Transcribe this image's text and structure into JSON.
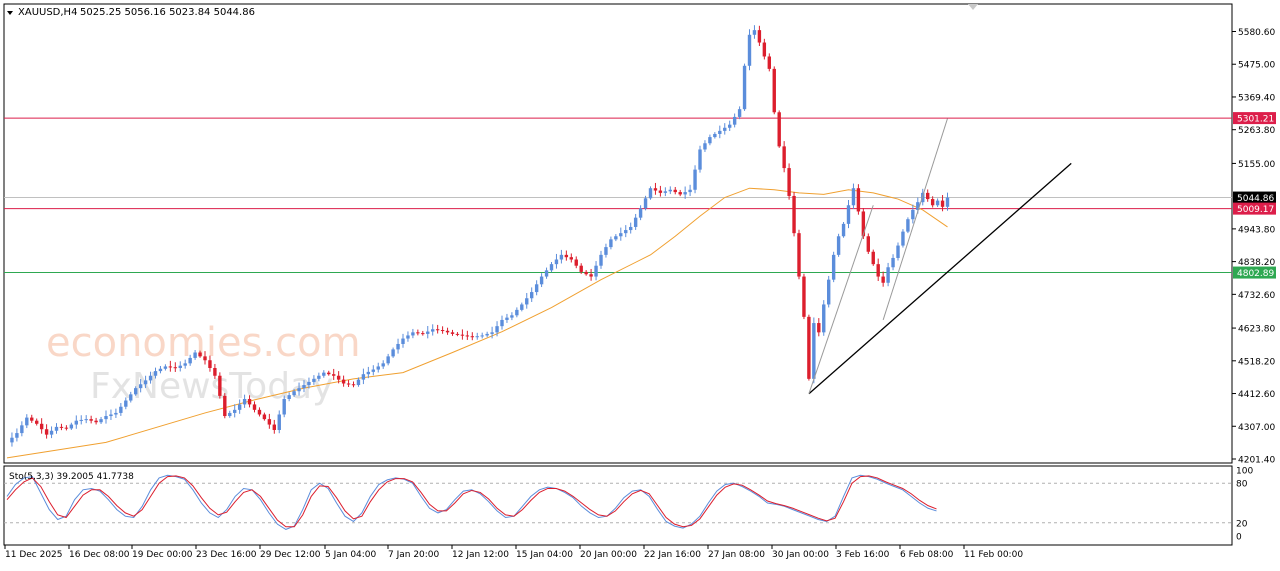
{
  "header": {
    "symbol": "XAUUSD,H4",
    "ohlc": "5025.25 5056.16 5023.84 5044.86"
  },
  "watermark": {
    "line1": "economies.com",
    "line2": "FxNewsToday"
  },
  "chart_data": [
    {
      "type": "candlestick",
      "title": "XAUUSD,H4",
      "ylim": [
        4180,
        5640
      ],
      "y_ticks": [
        "5580.60",
        "5475.00",
        "5369.40",
        "5263.80",
        "5155.00",
        "4943.80",
        "4838.20",
        "4732.60",
        "4623.80",
        "4518.20",
        "4412.60",
        "4307.00",
        "4201.40"
      ],
      "x_ticks": [
        "11 Dec 2025",
        "16 Dec 08:00",
        "19 Dec 00:00",
        "23 Dec 16:00",
        "29 Dec 12:00",
        "5 Jan 04:00",
        "7 Jan 20:00",
        "12 Jan 12:00",
        "15 Jan 04:00",
        "20 Jan 00:00",
        "22 Jan 16:00",
        "27 Jan 08:00",
        "30 Jan 00:00",
        "3 Feb 16:00",
        "6 Feb 08:00",
        "11 Feb 00:00"
      ],
      "ohlc": {
        "open": 5025.25,
        "high": 5056.16,
        "low": 5023.84,
        "close": 5044.86
      },
      "colors": {
        "up": "#5b8ddb",
        "down": "#dc1e2d",
        "moving_average": "#f0a030"
      },
      "price_path": [
        [
          0,
          4255
        ],
        [
          2,
          4285
        ],
        [
          4,
          4335
        ],
        [
          6,
          4315
        ],
        [
          8,
          4280
        ],
        [
          10,
          4305
        ],
        [
          12,
          4300
        ],
        [
          14,
          4325
        ],
        [
          16,
          4330
        ],
        [
          18,
          4320
        ],
        [
          20,
          4340
        ],
        [
          22,
          4350
        ],
        [
          24,
          4390
        ],
        [
          26,
          4430
        ],
        [
          28,
          4455
        ],
        [
          30,
          4485
        ],
        [
          32,
          4500
        ],
        [
          34,
          4495
        ],
        [
          36,
          4510
        ],
        [
          38,
          4545
        ],
        [
          40,
          4520
        ],
        [
          42,
          4470
        ],
        [
          44,
          4340
        ],
        [
          46,
          4360
        ],
        [
          48,
          4395
        ],
        [
          50,
          4360
        ],
        [
          52,
          4330
        ],
        [
          54,
          4295
        ],
        [
          56,
          4395
        ],
        [
          58,
          4420
        ],
        [
          60,
          4440
        ],
        [
          62,
          4460
        ],
        [
          64,
          4480
        ],
        [
          66,
          4470
        ],
        [
          68,
          4445
        ],
        [
          70,
          4440
        ],
        [
          72,
          4475
        ],
        [
          74,
          4490
        ],
        [
          76,
          4510
        ],
        [
          78,
          4555
        ],
        [
          80,
          4590
        ],
        [
          82,
          4610
        ],
        [
          84,
          4605
        ],
        [
          86,
          4620
        ],
        [
          88,
          4615
        ],
        [
          90,
          4605
        ],
        [
          92,
          4600
        ],
        [
          94,
          4595
        ],
        [
          96,
          4600
        ],
        [
          98,
          4610
        ],
        [
          100,
          4650
        ],
        [
          102,
          4665
        ],
        [
          104,
          4700
        ],
        [
          106,
          4740
        ],
        [
          108,
          4790
        ],
        [
          110,
          4830
        ],
        [
          112,
          4860
        ],
        [
          114,
          4845
        ],
        [
          116,
          4805
        ],
        [
          118,
          4790
        ],
        [
          120,
          4860
        ],
        [
          122,
          4910
        ],
        [
          124,
          4930
        ],
        [
          126,
          4950
        ],
        [
          128,
          5010
        ],
        [
          130,
          5075
        ],
        [
          132,
          5060
        ],
        [
          134,
          5070
        ],
        [
          136,
          5055
        ],
        [
          138,
          5070
        ],
        [
          140,
          5200
        ],
        [
          142,
          5240
        ],
        [
          144,
          5260
        ],
        [
          146,
          5280
        ],
        [
          148,
          5330
        ],
        [
          149,
          5470
        ],
        [
          150,
          5570
        ],
        [
          151,
          5585
        ],
        [
          152,
          5545
        ],
        [
          153,
          5500
        ],
        [
          154,
          5460
        ],
        [
          155,
          5320
        ],
        [
          156,
          5210
        ],
        [
          157,
          5140
        ],
        [
          158,
          5050
        ],
        [
          159,
          4930
        ],
        [
          160,
          4790
        ],
        [
          161,
          4660
        ],
        [
          162,
          4460
        ],
        [
          163,
          4640
        ],
        [
          164,
          4610
        ],
        [
          165,
          4700
        ],
        [
          166,
          4780
        ],
        [
          167,
          4860
        ],
        [
          168,
          4920
        ],
        [
          169,
          4960
        ],
        [
          170,
          5020
        ],
        [
          171,
          5075
        ],
        [
          172,
          5000
        ],
        [
          173,
          4920
        ],
        [
          174,
          4870
        ],
        [
          175,
          4830
        ],
        [
          176,
          4790
        ],
        [
          177,
          4770
        ],
        [
          178,
          4820
        ],
        [
          179,
          4850
        ],
        [
          180,
          4890
        ],
        [
          181,
          4935
        ],
        [
          182,
          4975
        ],
        [
          183,
          5005
        ],
        [
          184,
          5030
        ],
        [
          185,
          5060
        ],
        [
          186,
          5040
        ],
        [
          187,
          5020
        ],
        [
          188,
          5035
        ],
        [
          189,
          5015
        ],
        [
          190,
          5044.86
        ]
      ],
      "moving_average": {
        "name": "",
        "points": [
          [
            0,
            4205
          ],
          [
            20,
            4255
          ],
          [
            40,
            4350
          ],
          [
            50,
            4392
          ],
          [
            60,
            4430
          ],
          [
            70,
            4460
          ],
          [
            80,
            4480
          ],
          [
            90,
            4545
          ],
          [
            100,
            4612
          ],
          [
            110,
            4690
          ],
          [
            120,
            4780
          ],
          [
            130,
            4860
          ],
          [
            135,
            4920
          ],
          [
            140,
            4985
          ],
          [
            145,
            5045
          ],
          [
            150,
            5075
          ],
          [
            155,
            5070
          ],
          [
            160,
            5060
          ],
          [
            165,
            5055
          ],
          [
            170,
            5070
          ],
          [
            175,
            5060
          ],
          [
            180,
            5040
          ],
          [
            185,
            5005
          ],
          [
            190,
            4950
          ]
        ]
      },
      "horizontal_levels": [
        {
          "value": 5301.21,
          "label": "5301.21",
          "color": "#dc1e4a"
        },
        {
          "value": 5044.86,
          "label": "5044.86",
          "color": "#000000"
        },
        {
          "value": 5009.17,
          "label": "5009.17",
          "color": "#dc1e4a"
        },
        {
          "value": 4802.89,
          "label": "4802.89",
          "color": "#2ea851"
        }
      ],
      "trend_lines": [
        {
          "color": "#000000",
          "from": [
            162,
            4412
          ],
          "to": [
            215,
            5155
          ]
        },
        {
          "color": "#9a9a9a",
          "from": [
            162,
            4412
          ],
          "to": [
            175,
            5020
          ]
        },
        {
          "color": "#9a9a9a",
          "from": [
            177,
            4650
          ],
          "to": [
            190,
            5300
          ]
        }
      ]
    },
    {
      "type": "line",
      "title": "Sto(5,3,3) 39.2005 41.7738",
      "ylim": [
        0,
        100
      ],
      "y_ticks": [
        "100",
        "80",
        "20",
        "0"
      ],
      "levels": [
        80,
        20
      ],
      "main_value": 39.2005,
      "signal_value": 41.7738,
      "colors": {
        "main": "#5b8ddb",
        "signal": "#dc1e2d"
      },
      "series": [
        {
          "values": [
            60,
            78,
            88,
            90,
            65,
            40,
            25,
            30,
            55,
            70,
            72,
            68,
            55,
            40,
            30,
            28,
            45,
            70,
            88,
            92,
            90,
            86,
            70,
            50,
            35,
            28,
            40,
            60,
            72,
            70,
            55,
            35,
            18,
            10,
            15,
            40,
            70,
            80,
            72,
            50,
            30,
            22,
            35,
            60,
            78,
            85,
            88,
            86,
            80,
            60,
            42,
            35,
            40,
            55,
            68,
            70,
            64,
            52,
            38,
            28,
            30,
            45,
            60,
            70,
            74,
            72,
            66,
            58,
            45,
            35,
            28,
            30,
            42,
            58,
            68,
            70,
            60,
            40,
            22,
            15,
            12,
            18,
            30,
            50,
            68,
            78,
            80,
            75,
            68,
            60,
            50,
            48,
            45,
            40,
            35,
            30,
            25,
            22,
            30,
            60,
            88,
            92,
            90,
            86,
            80,
            75,
            70,
            60,
            50,
            42,
            38
          ]
        },
        {
          "values": [
            55,
            70,
            82,
            88,
            75,
            52,
            32,
            28,
            45,
            62,
            70,
            70,
            60,
            46,
            35,
            30,
            40,
            60,
            80,
            90,
            91,
            88,
            76,
            58,
            42,
            32,
            36,
            52,
            66,
            70,
            60,
            42,
            24,
            14,
            14,
            32,
            60,
            76,
            75,
            58,
            38,
            26,
            30,
            52,
            70,
            82,
            87,
            87,
            82,
            66,
            48,
            38,
            38,
            50,
            64,
            69,
            66,
            56,
            42,
            32,
            30,
            40,
            54,
            66,
            72,
            72,
            68,
            60,
            50,
            40,
            32,
            30,
            38,
            52,
            64,
            69,
            64,
            46,
            28,
            18,
            14,
            16,
            26,
            44,
            62,
            74,
            79,
            77,
            70,
            62,
            53,
            49,
            46,
            42,
            37,
            32,
            27,
            23,
            27,
            52,
            80,
            90,
            91,
            88,
            82,
            77,
            72,
            64,
            54,
            46,
            41
          ]
        }
      ]
    }
  ]
}
